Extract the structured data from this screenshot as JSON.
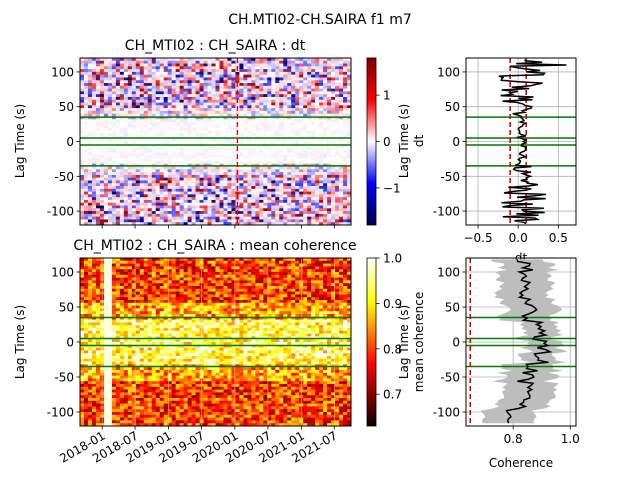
{
  "figure": {
    "suptitle": "CH.MTI02-CH.SAIRA f1 m7"
  },
  "colors": {
    "green_lines": "#007a00",
    "red_dashed": "#e00000",
    "fill_band": "#bdbdbd",
    "curve": "#000000"
  },
  "chart_data": [
    {
      "id": "dt-image",
      "type": "heatmap",
      "title": "CH_MTI02 : CH_SAIRA : dt",
      "ylabel": "Lag Time (s)",
      "xlabel": "",
      "yticks": [
        100,
        50,
        0,
        -50,
        -100
      ],
      "ylim": [
        -120,
        120
      ],
      "colormap": "seismic",
      "colorbar": {
        "ticks": [
          1,
          0,
          -1
        ],
        "range": [
          -1.8,
          1.8
        ]
      },
      "hlines": [
        35,
        5,
        -5,
        -35
      ],
      "vline_date": "2020-01-15"
    },
    {
      "id": "dt-profile",
      "type": "line",
      "ylabel": "Lag Time (s)",
      "ylabel2": "dt",
      "xlabel": "dt",
      "yticks": [
        100,
        50,
        0,
        -50,
        -100
      ],
      "xticks": [
        -0.5,
        0.0,
        0.5
      ],
      "xlim": [
        -0.65,
        0.72
      ],
      "ylim": [
        -120,
        120
      ],
      "hlines": [
        35,
        5,
        -5,
        -35
      ],
      "vlines_dashed": [
        -0.1,
        0.1
      ],
      "grid": true
    },
    {
      "id": "coh-image",
      "type": "heatmap",
      "title": "CH_MTI02 : CH_SAIRA : mean coherence",
      "ylabel": "Lag Time (s)",
      "xticks": [
        "2018-01",
        "2018-07",
        "2019-01",
        "2019-07",
        "2020-01",
        "2020-07",
        "2021-01",
        "2021-07"
      ],
      "yticks": [
        100,
        50,
        0,
        -50,
        -100
      ],
      "ylim": [
        -120,
        120
      ],
      "colormap": "hot",
      "colorbar": {
        "ticks": [
          1.0,
          0.9,
          0.8,
          0.7
        ],
        "range": [
          0.63,
          1.0
        ]
      },
      "hlines": [
        35,
        5,
        -5,
        -35
      ]
    },
    {
      "id": "coh-profile",
      "type": "line",
      "ylabel": "Lag Time (s)",
      "ylabel2": "mean coherence",
      "xlabel": "Coherence",
      "yticks": [
        100,
        50,
        0,
        -50,
        -100
      ],
      "xticks": [
        0.8,
        1.0
      ],
      "xlim": [
        0.635,
        1.02
      ],
      "ylim": [
        -120,
        120
      ],
      "hlines": [
        35,
        5,
        -5,
        -35
      ],
      "vlines_dashed": [
        0.65
      ],
      "grid": true
    }
  ]
}
